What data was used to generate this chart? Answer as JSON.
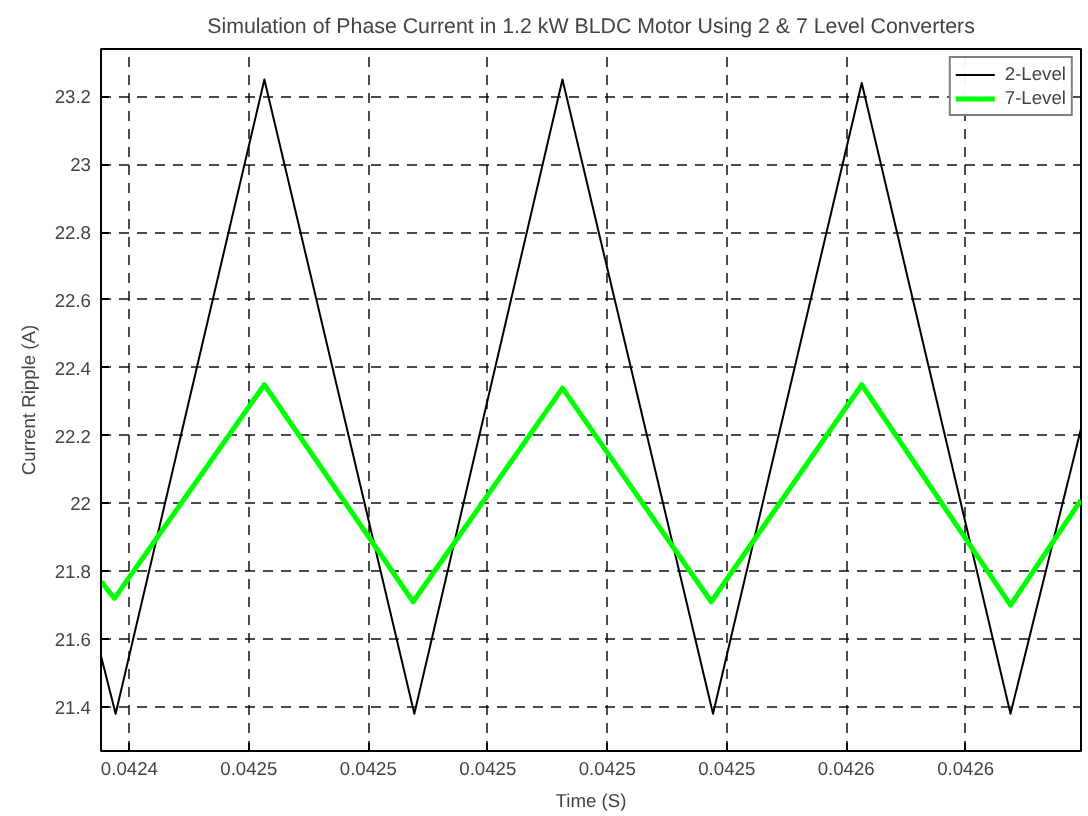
{
  "chart_data": {
    "type": "line",
    "title": "Simulation of Phase Current in 1.2 kW BLDC Motor Using 2 & 7 Level Converters",
    "xlabel": "Time (S)",
    "ylabel": "Current Ripple (A)",
    "xlim": [
      0.04242725,
      0.0425913
    ],
    "ylim": [
      21.27,
      23.34
    ],
    "xticks": [
      {
        "value": 0.042432,
        "label": "0.0424"
      },
      {
        "value": 0.042452,
        "label": "0.0425"
      },
      {
        "value": 0.042472,
        "label": "0.0425"
      },
      {
        "value": 0.042492,
        "label": "0.0425"
      },
      {
        "value": 0.042512,
        "label": "0.0425"
      },
      {
        "value": 0.042532,
        "label": "0.0425"
      },
      {
        "value": 0.042552,
        "label": "0.0426"
      },
      {
        "value": 0.042572,
        "label": "0.0426"
      }
    ],
    "yticks": [
      21.4,
      21.6,
      21.8,
      22,
      22.2,
      22.4,
      22.6,
      22.8,
      23,
      23.2
    ],
    "grid": true,
    "legend": "top right",
    "line_style": "solid",
    "series": [
      {
        "name": "2-Level",
        "color": "#000000",
        "x": [
          0.04242725,
          0.0424297,
          0.0424546,
          0.0424797,
          0.0425045,
          0.0425297,
          0.0425546,
          0.0425795,
          0.0425913
        ],
        "values": [
          21.55,
          21.38,
          23.25,
          21.38,
          23.25,
          21.38,
          23.24,
          21.38,
          22.22
        ]
      },
      {
        "name": "7-Level",
        "color": "#00ff00",
        "x": [
          0.04242725,
          0.0424295,
          0.0424546,
          0.0424795,
          0.0425045,
          0.0425294,
          0.0425546,
          0.0425795,
          0.0425913
        ],
        "values": [
          21.77,
          21.72,
          22.35,
          21.71,
          22.34,
          21.71,
          22.35,
          21.7,
          22.01
        ]
      }
    ]
  }
}
